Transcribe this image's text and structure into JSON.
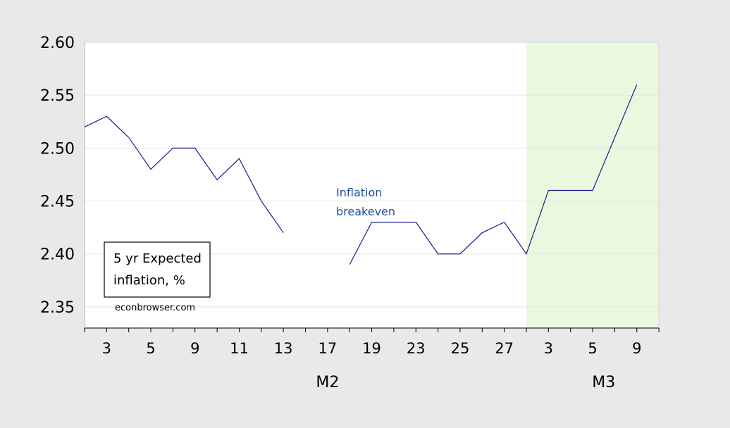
{
  "chart_data": {
    "type": "line",
    "title": "",
    "xlabel": "",
    "ylabel": "",
    "ylim": [
      2.33,
      2.6
    ],
    "yticks": [
      "2.35",
      "2.40",
      "2.45",
      "2.50",
      "2.55",
      "2.60"
    ],
    "x_tick_labels": [
      "3",
      "5",
      "9",
      "11",
      "13",
      "17",
      "19",
      "23",
      "25",
      "27",
      "3",
      "5",
      "9"
    ],
    "x_tick_labels_extra": [
      "3"
    ],
    "month_labels": [
      "M2",
      "M3"
    ],
    "series": [
      {
        "values": [
          2.52,
          2.53,
          2.51,
          2.48,
          2.5,
          2.5,
          2.47,
          2.49,
          2.45,
          2.42,
          null,
          null,
          2.39,
          2.43,
          2.43,
          2.43,
          2.4,
          2.4,
          2.42,
          2.43,
          2.4,
          2.46,
          2.46,
          2.46,
          2.51,
          2.56
        ],
        "color": "#1a1a8c"
      }
    ],
    "shaded_region": {
      "from_index": 20,
      "to_index": 26,
      "color": "#eaf8df"
    },
    "annotations": {
      "series_label": [
        "Inflation",
        "breakeven"
      ],
      "box_text": [
        "5 yr Expected",
        "inflation, %"
      ],
      "source": "econbrowser.com"
    },
    "grid": true
  }
}
